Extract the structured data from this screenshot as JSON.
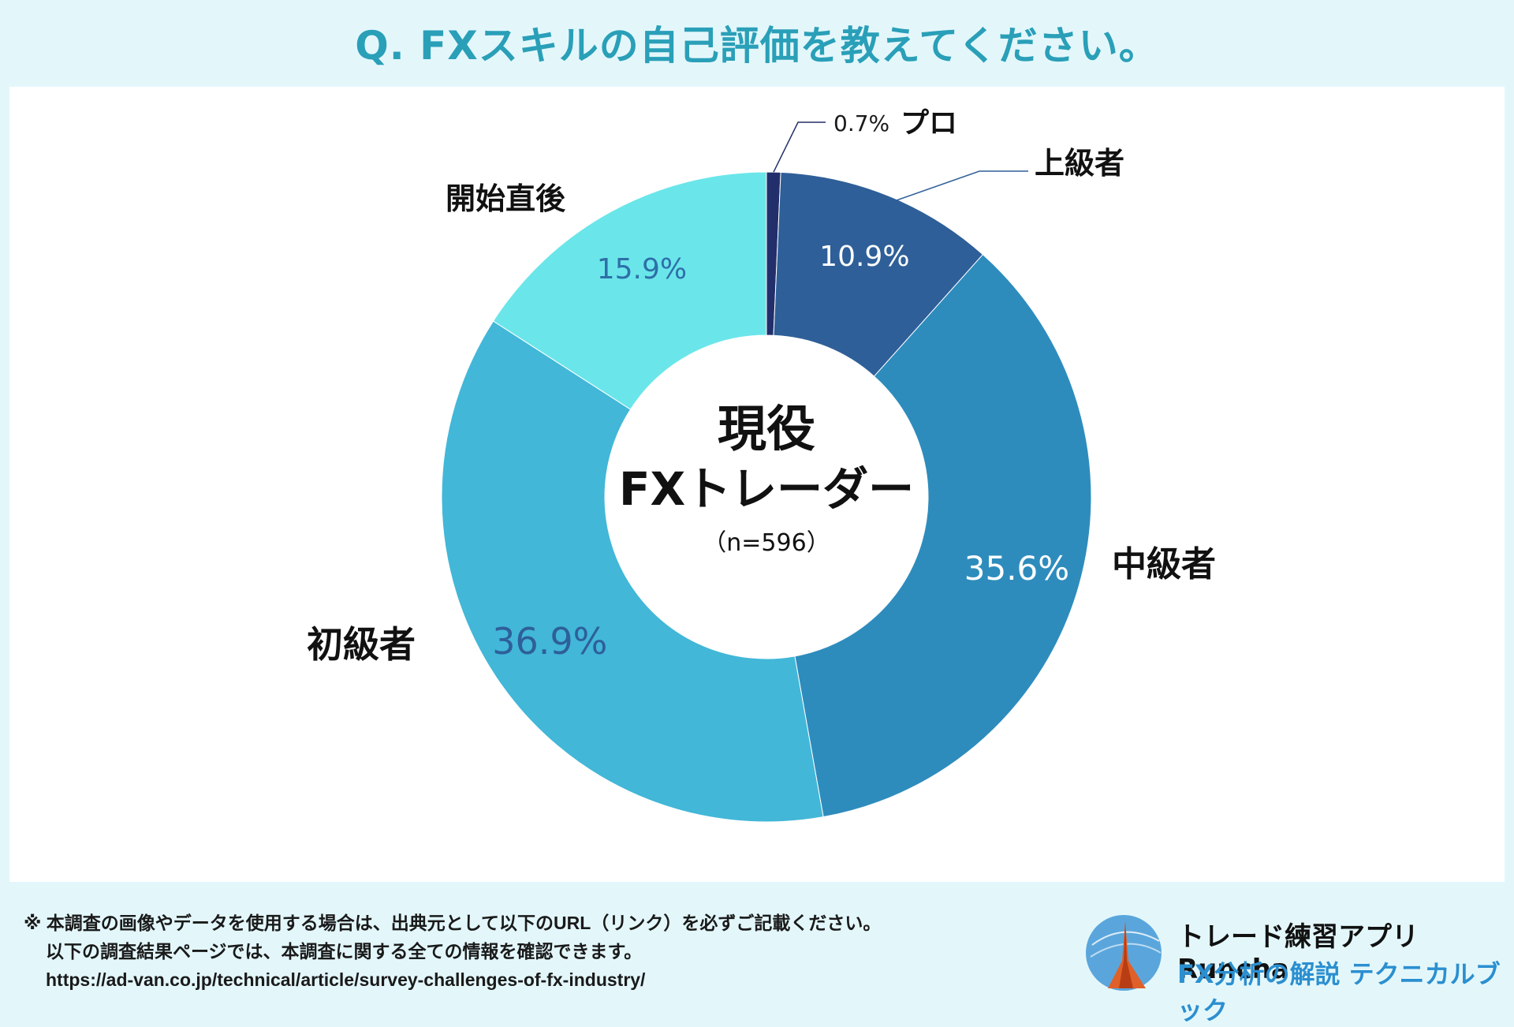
{
  "header": {
    "title": "Q. FXスキルの自己評価を教えてください。"
  },
  "chart_data": {
    "type": "pie",
    "variant": "donut",
    "title": "Q. FXスキルの自己評価を教えてください。",
    "center_label": {
      "line1": "現役",
      "line2": "FXトレーダー",
      "line3": "（n=596）"
    },
    "categories": [
      "プロ",
      "上級者",
      "中級者",
      "初級者",
      "開始直後"
    ],
    "values": [
      0.7,
      10.9,
      35.6,
      36.9,
      15.9
    ],
    "value_labels": [
      "0.7%",
      "10.9%",
      "35.6%",
      "36.9%",
      "15.9%"
    ],
    "colors": [
      "#232f6b",
      "#2e5f98",
      "#2e8cbd",
      "#42b7d8",
      "#6ae6ea"
    ],
    "label_text_colors": [
      "#1a1a1a",
      "#ffffff",
      "#ffffff",
      "#2e5f98",
      "#2e6fa8"
    ]
  },
  "footer": {
    "note_line1": "※ 本調査の画像やデータを使用する場合は、出典元として以下のURL（リンク）を必ずご記載ください。",
    "note_line2": "以下の調査結果ページでは、本調査に関する全ての情報を確認できます。",
    "url": "https://ad-van.co.jp/technical/article/survey-challenges-of-fx-industry/"
  },
  "branding": {
    "line1": "トレード練習アプリ  Runcha",
    "line2": "FX分析の解説  テクニカルブック"
  }
}
